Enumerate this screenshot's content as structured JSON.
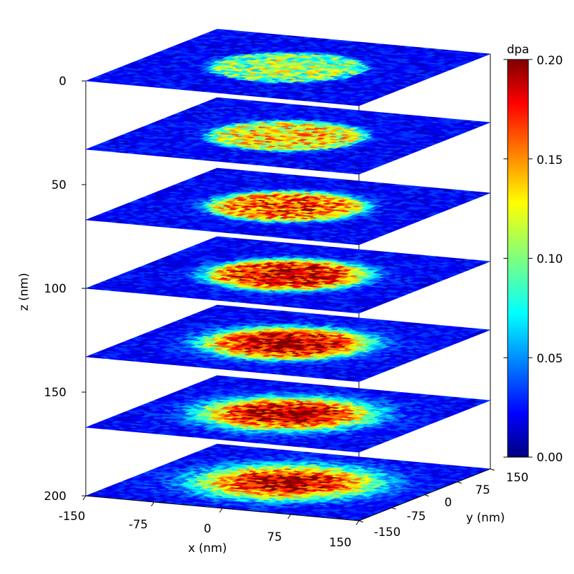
{
  "chart_data": {
    "type": "heatmap",
    "title": "",
    "xlabel": "x (nm)",
    "ylabel": "y (nm)",
    "zlabel": "z (nm)",
    "x_ticks": [
      "-150",
      "-75",
      "0",
      "75",
      "150"
    ],
    "y_ticks": [
      "-150",
      "-75",
      "0",
      "75",
      "150"
    ],
    "z_ticks": [
      "0",
      "50",
      "100",
      "150",
      "200"
    ],
    "xlim": [
      -150,
      150
    ],
    "ylim": [
      -150,
      150
    ],
    "zlim": [
      0,
      200
    ],
    "colorbar": {
      "label": "dpa",
      "colormap": "jet",
      "range": [
        0.0,
        0.2
      ],
      "ticks": [
        "0.00",
        "0.05",
        "0.10",
        "0.15",
        "0.20"
      ]
    },
    "slices": [
      {
        "z": 0,
        "spot_radius_nm": 78,
        "peak_dpa": 0.11,
        "edge_width_nm": 6
      },
      {
        "z": 33,
        "spot_radius_nm": 78,
        "peak_dpa": 0.14,
        "edge_width_nm": 9
      },
      {
        "z": 67,
        "spot_radius_nm": 78,
        "peak_dpa": 0.17,
        "edge_width_nm": 12
      },
      {
        "z": 100,
        "spot_radius_nm": 80,
        "peak_dpa": 0.19,
        "edge_width_nm": 16
      },
      {
        "z": 133,
        "spot_radius_nm": 82,
        "peak_dpa": 0.2,
        "edge_width_nm": 22
      },
      {
        "z": 167,
        "spot_radius_nm": 84,
        "peak_dpa": 0.2,
        "edge_width_nm": 28
      },
      {
        "z": 200,
        "spot_radius_nm": 86,
        "peak_dpa": 0.2,
        "edge_width_nm": 34
      }
    ],
    "background_dpa": 0.025,
    "colors": {
      "axis": "#000000",
      "background": "#ffffff"
    }
  }
}
